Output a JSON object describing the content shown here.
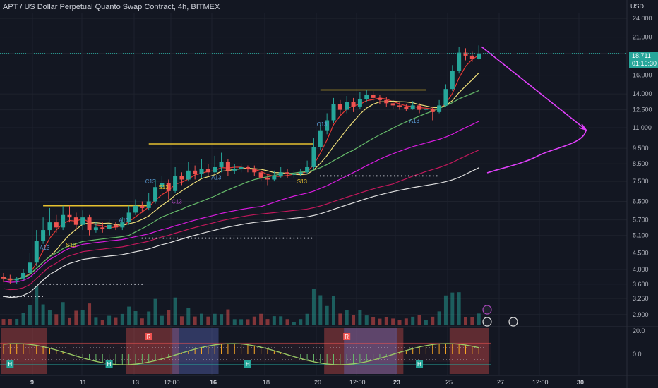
{
  "chart_title": "APT / US Dollar Perpetual Quanto Swap Contract, 4h, BITMEX",
  "currency": "USD",
  "last_price": "18.711",
  "countdown": "01:16:30",
  "colors": {
    "background": "#131722",
    "grid": "#1e222d",
    "up": "#26a69a",
    "down": "#ef5350",
    "resistance": "#e6c12f",
    "ma_red": "#e53935",
    "ma_yellow": "#f0e07a",
    "ma_green": "#66bb6a",
    "ma_magenta": "#d81bdf",
    "ma_pink": "#c2185b",
    "ma_white": "#e0e0e0",
    "forecast_arrow": "#e040fb"
  },
  "chart_data": {
    "type": "candlestick",
    "y_scale": "log",
    "ylim": [
      2.7,
      25
    ],
    "y_ticks": [
      "24.000",
      "21.000",
      "18.711",
      "16.000",
      "14.000",
      "12.500",
      "11.000",
      "9.500",
      "8.500",
      "7.500",
      "6.500",
      "5.700",
      "5.100",
      "4.500",
      "4.000",
      "3.600",
      "3.250",
      "2.900"
    ],
    "x_ticks": [
      "9",
      "11",
      "13",
      "12:00",
      "16",
      "18",
      "20",
      "12:00",
      "23",
      "25",
      "27",
      "12:00",
      "30"
    ],
    "candles": [
      [
        3.8,
        3.75,
        3.9,
        3.65
      ],
      [
        3.75,
        3.7,
        3.85,
        3.6
      ],
      [
        3.7,
        3.75,
        3.8,
        3.6
      ],
      [
        3.75,
        3.9,
        4.0,
        3.7
      ],
      [
        3.9,
        4.2,
        4.5,
        3.85
      ],
      [
        4.2,
        4.9,
        5.3,
        4.1
      ],
      [
        4.9,
        5.3,
        5.8,
        4.8
      ],
      [
        5.3,
        5.6,
        6.2,
        5.1
      ],
      [
        5.6,
        5.4,
        5.9,
        5.2
      ],
      [
        5.4,
        5.9,
        6.3,
        5.3
      ],
      [
        5.9,
        5.8,
        6.3,
        5.6
      ],
      [
        5.8,
        5.5,
        6.0,
        5.3
      ],
      [
        5.5,
        5.8,
        6.1,
        5.3
      ],
      [
        5.8,
        5.3,
        5.9,
        5.1
      ],
      [
        5.3,
        5.4,
        5.6,
        5.2
      ],
      [
        5.4,
        5.35,
        5.6,
        5.2
      ],
      [
        5.35,
        5.5,
        5.7,
        5.3
      ],
      [
        5.5,
        5.4,
        5.6,
        5.3
      ],
      [
        5.4,
        5.6,
        5.8,
        5.3
      ],
      [
        5.6,
        6.0,
        6.3,
        5.5
      ],
      [
        6.0,
        6.3,
        6.6,
        5.9
      ],
      [
        6.3,
        6.2,
        6.5,
        6.0
      ],
      [
        6.2,
        6.5,
        6.9,
        6.1
      ],
      [
        6.5,
        7.2,
        7.6,
        6.4
      ],
      [
        7.2,
        7.4,
        7.8,
        7.0
      ],
      [
        7.4,
        7.0,
        7.6,
        6.6
      ],
      [
        7.0,
        7.8,
        8.3,
        6.9
      ],
      [
        7.8,
        7.6,
        8.0,
        7.3
      ],
      [
        7.6,
        8.1,
        8.6,
        7.5
      ],
      [
        8.1,
        7.9,
        8.4,
        7.6
      ],
      [
        7.9,
        8.2,
        8.8,
        7.7
      ],
      [
        8.2,
        8.0,
        8.5,
        7.8
      ],
      [
        8.0,
        8.3,
        9.0,
        7.9
      ],
      [
        8.3,
        8.6,
        9.2,
        8.0
      ],
      [
        8.6,
        8.1,
        8.8,
        7.8
      ],
      [
        8.1,
        8.2,
        8.5,
        7.9
      ],
      [
        8.2,
        8.3,
        8.5,
        8.0
      ],
      [
        8.3,
        8.2,
        8.4,
        8.0
      ],
      [
        8.2,
        8.0,
        8.4,
        7.8
      ],
      [
        8.0,
        7.7,
        8.1,
        7.5
      ],
      [
        7.7,
        7.6,
        7.9,
        7.3
      ],
      [
        7.6,
        7.8,
        8.1,
        7.5
      ],
      [
        7.8,
        8.0,
        8.3,
        7.7
      ],
      [
        8.0,
        7.9,
        8.2,
        7.7
      ],
      [
        7.9,
        7.9,
        8.1,
        7.7
      ],
      [
        7.9,
        8.0,
        8.2,
        7.8
      ],
      [
        8.0,
        8.3,
        8.7,
        7.9
      ],
      [
        8.3,
        9.6,
        10.2,
        8.2
      ],
      [
        9.6,
        10.8,
        11.4,
        9.4
      ],
      [
        10.8,
        11.6,
        12.2,
        10.5
      ],
      [
        11.6,
        13.0,
        13.6,
        11.4
      ],
      [
        13.0,
        12.5,
        13.4,
        12.0
      ],
      [
        12.5,
        13.2,
        13.8,
        12.2
      ],
      [
        13.2,
        12.8,
        13.6,
        12.3
      ],
      [
        12.8,
        13.5,
        14.2,
        12.6
      ],
      [
        13.5,
        13.9,
        14.4,
        13.2
      ],
      [
        13.9,
        13.6,
        14.3,
        13.2
      ],
      [
        13.6,
        13.4,
        13.9,
        13.0
      ],
      [
        13.4,
        13.1,
        13.7,
        12.8
      ],
      [
        13.1,
        12.9,
        13.4,
        12.6
      ],
      [
        12.9,
        12.8,
        13.2,
        12.5
      ],
      [
        12.8,
        12.6,
        13.0,
        12.4
      ],
      [
        12.6,
        12.9,
        13.3,
        12.5
      ],
      [
        12.9,
        12.5,
        13.1,
        12.2
      ],
      [
        12.5,
        12.6,
        12.9,
        12.3
      ],
      [
        12.6,
        12.3,
        12.8,
        11.6
      ],
      [
        12.3,
        12.9,
        13.4,
        12.2
      ],
      [
        12.9,
        14.5,
        15.0,
        12.8
      ],
      [
        14.5,
        16.5,
        17.2,
        14.3
      ],
      [
        16.5,
        18.8,
        19.6,
        16.2
      ],
      [
        18.8,
        18.4,
        19.4,
        17.8
      ],
      [
        18.4,
        18.0,
        18.9,
        17.6
      ],
      [
        18.0,
        18.7,
        19.8,
        17.9
      ]
    ],
    "resistance_levels": [
      {
        "price": 6.3,
        "from": 6,
        "to": 22
      },
      {
        "price": 9.8,
        "from": 22,
        "to": 47
      },
      {
        "price": 14.4,
        "from": 48,
        "to": 64
      }
    ],
    "support_dots": [
      {
        "price": 3.3,
        "from": 0,
        "to": 6
      },
      {
        "price": 3.6,
        "from": 6,
        "to": 21
      },
      {
        "price": 5.0,
        "from": 21,
        "to": 47
      },
      {
        "price": 7.8,
        "from": 48,
        "to": 66
      }
    ],
    "annotations": [
      {
        "text": "A13",
        "i": 6,
        "price": 4.6,
        "color": "#5b9bd5"
      },
      {
        "text": "S13",
        "i": 10,
        "price": 4.7,
        "color": "#e6c12f"
      },
      {
        "text": "A13",
        "i": 18,
        "price": 5.6,
        "color": "#5b9bd5"
      },
      {
        "text": "C13",
        "i": 22,
        "price": 7.4,
        "color": "#5b9bd5"
      },
      {
        "text": "S13",
        "i": 24,
        "price": 7.1,
        "color": "#e6c12f"
      },
      {
        "text": "C13",
        "i": 26,
        "price": 6.4,
        "color": "#ab47bc"
      },
      {
        "text": "A13",
        "i": 32,
        "price": 7.6,
        "color": "#5b9bd5"
      },
      {
        "text": "S13",
        "i": 45,
        "price": 7.4,
        "color": "#e6c12f"
      },
      {
        "text": "C13",
        "i": 48,
        "price": 11.1,
        "color": "#5b9bd5"
      },
      {
        "text": "A13",
        "i": 62,
        "price": 11.4,
        "color": "#5b9bd5"
      }
    ],
    "osc_labels": [
      {
        "text": "H",
        "i": 1,
        "color": "#26a69a"
      },
      {
        "text": "H",
        "i": 16,
        "color": "#26a69a"
      },
      {
        "text": "R",
        "i": 22,
        "color": "#ef5350"
      },
      {
        "text": "H",
        "i": 37,
        "color": "#26a69a"
      },
      {
        "text": "R",
        "i": 52,
        "color": "#ef5350"
      },
      {
        "text": "H",
        "i": 63,
        "color": "#26a69a"
      }
    ],
    "osc_ticks": [
      "20.0",
      "0.0"
    ]
  }
}
